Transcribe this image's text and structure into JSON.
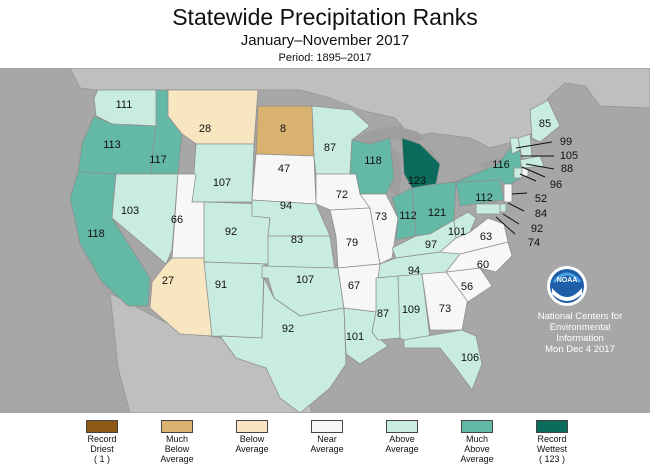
{
  "title": "Statewide Precipitation Ranks",
  "subtitle": "January–November 2017",
  "period": "Period: 1895–2017",
  "credit": {
    "line1": "National Centers for",
    "line2": "Environmental",
    "line3": "Information",
    "date": "Mon Dec  4 2017",
    "logo_text": "NOAA"
  },
  "legend": [
    {
      "key": "record_driest",
      "line1": "Record",
      "line2": "Driest",
      "line3": "( 1 )",
      "color": "#8c5a14"
    },
    {
      "key": "much_below",
      "line1": "Much",
      "line2": "Below",
      "line3": "Average",
      "color": "#d8b26e"
    },
    {
      "key": "below",
      "line1": "Below",
      "line2": "Average",
      "line3": "",
      "color": "#f7e6bf"
    },
    {
      "key": "near",
      "line1": "Near",
      "line2": "Average",
      "line3": "",
      "color": "#f7f7f7"
    },
    {
      "key": "above",
      "line1": "Above",
      "line2": "Average",
      "line3": "",
      "color": "#c9ece0"
    },
    {
      "key": "much_above",
      "line1": "Much",
      "line2": "Above",
      "line3": "Average",
      "color": "#64b8a6"
    },
    {
      "key": "record_wettest",
      "line1": "Record",
      "line2": "Wettest",
      "line3": "( 123 )",
      "color": "#0b6b5c"
    }
  ],
  "colors": {
    "ocean": "#a7a7a7",
    "land_outside": "#bfbfbf",
    "lakes": "#9e9e9e"
  },
  "states": {
    "WA": {
      "rank": "111",
      "cat": "above"
    },
    "OR": {
      "rank": "113",
      "cat": "much_above"
    },
    "CA": {
      "rank": "118",
      "cat": "much_above"
    },
    "ID": {
      "rank": "117",
      "cat": "much_above"
    },
    "NV": {
      "rank": "103",
      "cat": "above"
    },
    "MT": {
      "rank": "28",
      "cat": "below"
    },
    "WY": {
      "rank": "107",
      "cat": "above"
    },
    "UT": {
      "rank": "66",
      "cat": "near"
    },
    "AZ": {
      "rank": "27",
      "cat": "below"
    },
    "CO": {
      "rank": "92",
      "cat": "above"
    },
    "NM": {
      "rank": "91",
      "cat": "above"
    },
    "ND": {
      "rank": "8",
      "cat": "much_below"
    },
    "SD": {
      "rank": "47",
      "cat": "near"
    },
    "NE": {
      "rank": "94",
      "cat": "above"
    },
    "KS": {
      "rank": "83",
      "cat": "above"
    },
    "OK": {
      "rank": "107",
      "cat": "above"
    },
    "TX": {
      "rank": "92",
      "cat": "above"
    },
    "MN": {
      "rank": "87",
      "cat": "above"
    },
    "IA": {
      "rank": "72",
      "cat": "near"
    },
    "MO": {
      "rank": "79",
      "cat": "near"
    },
    "AR": {
      "rank": "67",
      "cat": "near"
    },
    "LA": {
      "rank": "101",
      "cat": "above"
    },
    "WI": {
      "rank": "118",
      "cat": "much_above"
    },
    "IL": {
      "rank": "73",
      "cat": "near"
    },
    "MI": {
      "rank": "123",
      "cat": "record_wettest"
    },
    "IN": {
      "rank": "112",
      "cat": "much_above"
    },
    "OH": {
      "rank": "121",
      "cat": "much_above"
    },
    "KY": {
      "rank": "97",
      "cat": "above"
    },
    "TN": {
      "rank": "94",
      "cat": "above"
    },
    "MS": {
      "rank": "87",
      "cat": "above"
    },
    "AL": {
      "rank": "109",
      "cat": "above"
    },
    "GA": {
      "rank": "73",
      "cat": "near"
    },
    "FL": {
      "rank": "106",
      "cat": "above"
    },
    "SC": {
      "rank": "56",
      "cat": "near"
    },
    "NC": {
      "rank": "60",
      "cat": "near"
    },
    "VA": {
      "rank": "63",
      "cat": "near"
    },
    "WV": {
      "rank": "101",
      "cat": "above"
    },
    "PA": {
      "rank": "112",
      "cat": "much_above"
    },
    "NY": {
      "rank": "116",
      "cat": "much_above"
    },
    "ME": {
      "rank": "85",
      "cat": "above"
    },
    "VT": {
      "rank": "99",
      "cat": "above"
    },
    "NH": {
      "rank": "105",
      "cat": "above"
    },
    "MA": {
      "rank": "88",
      "cat": "above"
    },
    "CT": {
      "rank": "96",
      "cat": "above"
    },
    "NJ": {
      "rank": "52",
      "cat": "near"
    },
    "DE": {
      "rank": "84",
      "cat": "above"
    },
    "MD": {
      "rank": "92",
      "cat": "above"
    },
    "RI": {
      "rank": "74",
      "cat": "near"
    }
  }
}
